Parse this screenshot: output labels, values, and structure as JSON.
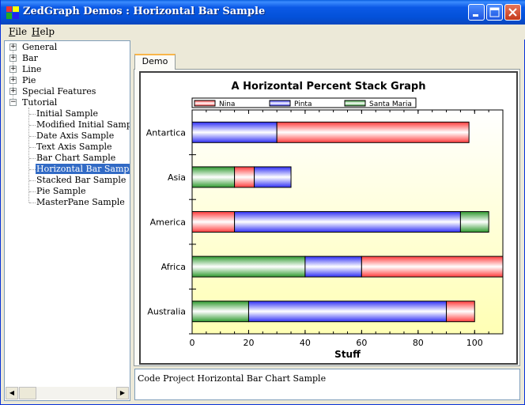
{
  "window": {
    "title": "ZedGraph Demos : Horizontal Bar Sample"
  },
  "menu": [
    {
      "underline": "F",
      "rest": "ile"
    },
    {
      "underline": "H",
      "rest": "elp"
    }
  ],
  "tree": {
    "top_level": [
      "General",
      "Bar",
      "Line",
      "Pie",
      "Special Features",
      "Tutorial"
    ],
    "tutorial_children": [
      "Initial Sample",
      "Modified Initial Sample",
      "Date Axis Sample",
      "Text Axis Sample",
      "Bar Chart Sample",
      "Horizontal Bar Sample",
      "Stacked Bar Sample",
      "Pie Sample",
      "MasterPane Sample"
    ],
    "selected": "Horizontal Bar Sample"
  },
  "tabs": [
    "Demo"
  ],
  "status_text": "Code Project Horizontal Bar Chart Sample",
  "colors": {
    "nina": "#ff3c3c",
    "pinta": "#2f2ff5",
    "santa_maria": "#2f9a2f",
    "title_bar": "#0351d9",
    "selection": "#316ac5"
  },
  "chart_data": {
    "type": "bar",
    "orientation": "horizontal",
    "stacked": true,
    "title": "A Horizontal Percent Stack Graph",
    "xlabel": "Stuff",
    "ylabel": "",
    "xlim": [
      0,
      110
    ],
    "xticks": [
      0,
      20,
      40,
      60,
      80,
      100
    ],
    "categories": [
      "Australia",
      "Africa",
      "America",
      "Asia",
      "Antartica"
    ],
    "legend_position": "top",
    "series": [
      {
        "name": "Nina",
        "color": "#ff3c3c"
      },
      {
        "name": "Pinta",
        "color": "#2f2ff5"
      },
      {
        "name": "Santa Maria",
        "color": "#2f9a2f"
      }
    ],
    "bars": [
      {
        "category": "Australia",
        "segments": [
          {
            "series": "Santa Maria",
            "start": 0,
            "end": 20
          },
          {
            "series": "Pinta",
            "start": 20,
            "end": 90
          },
          {
            "series": "Nina",
            "start": 90,
            "end": 100
          }
        ]
      },
      {
        "category": "Africa",
        "segments": [
          {
            "series": "Santa Maria",
            "start": 0,
            "end": 40
          },
          {
            "series": "Pinta",
            "start": 40,
            "end": 60
          },
          {
            "series": "Nina",
            "start": 60,
            "end": 110
          }
        ]
      },
      {
        "category": "America",
        "segments": [
          {
            "series": "Nina",
            "start": 0,
            "end": 15
          },
          {
            "series": "Pinta",
            "start": 15,
            "end": 95
          },
          {
            "series": "Santa Maria",
            "start": 95,
            "end": 105
          }
        ]
      },
      {
        "category": "Asia",
        "segments": [
          {
            "series": "Santa Maria",
            "start": 0,
            "end": 15
          },
          {
            "series": "Nina",
            "start": 15,
            "end": 22
          },
          {
            "series": "Pinta",
            "start": 22,
            "end": 35
          }
        ]
      },
      {
        "category": "Antartica",
        "segments": [
          {
            "series": "Pinta",
            "start": 0,
            "end": 30
          },
          {
            "series": "Nina",
            "start": 30,
            "end": 98
          }
        ]
      }
    ]
  }
}
